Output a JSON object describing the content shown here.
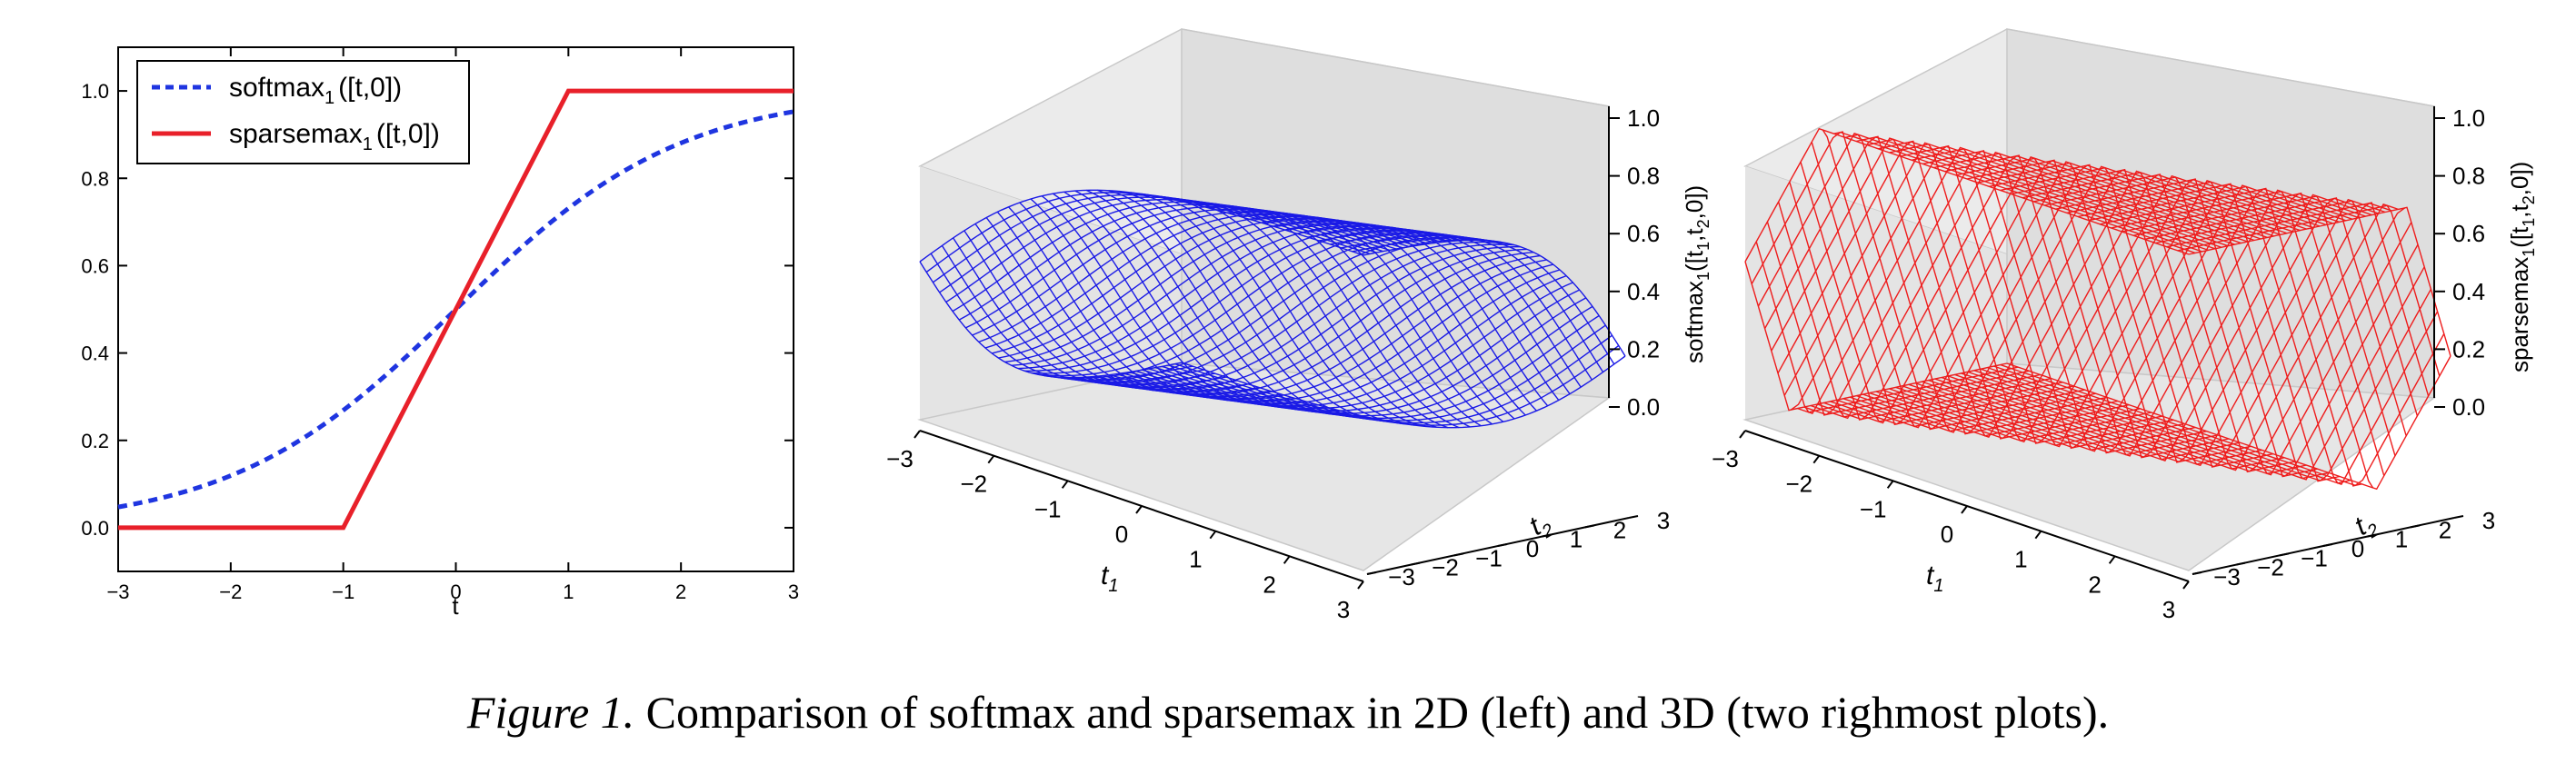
{
  "caption": {
    "label": "Figure 1.",
    "text": "Comparison of softmax and sparsemax in 2D (left) and 3D (two righmost plots)."
  },
  "chart_data": [
    {
      "type": "line",
      "xlabel": "t",
      "xlim": [
        -3,
        3
      ],
      "ylim": [
        -0.1,
        1.1
      ],
      "xticks": [
        "−3",
        "−2",
        "−1",
        "0",
        "1",
        "2",
        "3"
      ],
      "yticks": [
        "0.0",
        "0.2",
        "0.4",
        "0.6",
        "0.8",
        "1.0"
      ],
      "legend_position": "top-left",
      "series": [
        {
          "name": "softmax",
          "name_sub": "1",
          "name_suffix": "([t,0])",
          "color": "#1f35e0",
          "style": "dashed",
          "x": [
            -3,
            -2.5,
            -2,
            -1.5,
            -1,
            -0.5,
            0,
            0.5,
            1,
            1.5,
            2,
            2.5,
            3
          ],
          "y": [
            0.047,
            0.076,
            0.119,
            0.182,
            0.269,
            0.378,
            0.5,
            0.622,
            0.731,
            0.818,
            0.881,
            0.924,
            0.953
          ]
        },
        {
          "name": "sparsemax",
          "name_sub": "1",
          "name_suffix": "([t,0])",
          "color": "#e8202a",
          "style": "solid",
          "x": [
            -3,
            -1,
            1,
            3
          ],
          "y": [
            0,
            0,
            1,
            1
          ]
        }
      ]
    },
    {
      "type": "surface",
      "xlabel": "t",
      "xlabel_sub": "1",
      "ylabel": "t",
      "ylabel_sub": "2",
      "zlabel": "softmax",
      "zlabel_sub": "1",
      "zlabel_args": "([t",
      "zlabel_args_sub": "1",
      "zlabel_args_mid": ",t",
      "zlabel_args_sub2": "2",
      "zlabel_args_end": ",0])",
      "xlim": [
        -3,
        3
      ],
      "ylim": [
        -3,
        3
      ],
      "zlim": [
        0,
        1
      ],
      "xticks": [
        "−3",
        "−2",
        "−1",
        "0",
        "1",
        "2",
        "3"
      ],
      "yticks": [
        "−3",
        "−2",
        "−1",
        "0",
        "1",
        "2",
        "3"
      ],
      "zticks": [
        "0.0",
        "0.2",
        "0.4",
        "0.6",
        "0.8",
        "1.0"
      ],
      "color": "#1a1ae6",
      "function": "z = 1 / (1 + exp(t2 - t1))"
    },
    {
      "type": "surface",
      "xlabel": "t",
      "xlabel_sub": "1",
      "ylabel": "t",
      "ylabel_sub": "2",
      "zlabel": "sparsemax",
      "zlabel_sub": "1",
      "zlabel_args": "([t",
      "zlabel_args_sub": "1",
      "zlabel_args_mid": ",t",
      "zlabel_args_sub2": "2",
      "zlabel_args_end": ",0])",
      "xlim": [
        -3,
        3
      ],
      "ylim": [
        -3,
        3
      ],
      "zlim": [
        0,
        1
      ],
      "xticks": [
        "−3",
        "−2",
        "−1",
        "0",
        "1",
        "2",
        "3"
      ],
      "yticks": [
        "−3",
        "−2",
        "−1",
        "0",
        "1",
        "2",
        "3"
      ],
      "zticks": [
        "0.0",
        "0.2",
        "0.4",
        "0.6",
        "0.8",
        "1.0"
      ],
      "color": "#ee1c1c",
      "function": "z = clip((t1 - t2 + 1) / 2, 0, 1)"
    }
  ]
}
